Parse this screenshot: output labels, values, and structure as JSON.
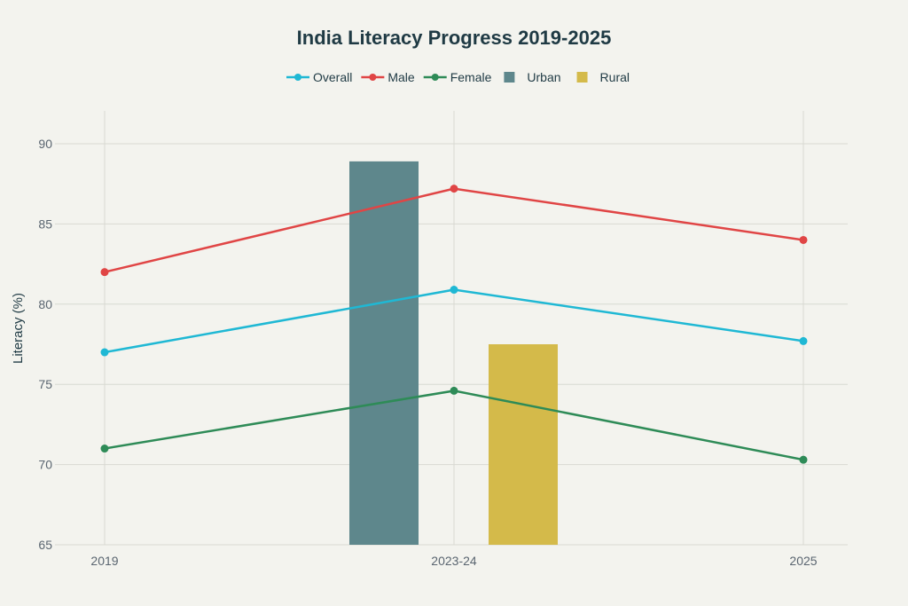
{
  "chart_data": {
    "type": "line",
    "title": "India Literacy Progress 2019-2025",
    "xlabel": "",
    "ylabel": "Literacy (%)",
    "ylim": [
      65,
      92
    ],
    "yticks": [
      65,
      70,
      75,
      80,
      85,
      90
    ],
    "categories": [
      "2019",
      "2023-24",
      "2025"
    ],
    "grid": true,
    "legend_position": "top-center",
    "series": [
      {
        "name": "Overall",
        "kind": "line",
        "color": "#1fb8d4",
        "values": [
          77.0,
          80.9,
          77.7
        ]
      },
      {
        "name": "Male",
        "kind": "line",
        "color": "#e04545",
        "values": [
          82.0,
          87.2,
          84.0
        ]
      },
      {
        "name": "Female",
        "kind": "line",
        "color": "#2e8b57",
        "values": [
          71.0,
          74.6,
          70.3
        ]
      },
      {
        "name": "Urban",
        "kind": "bar",
        "color": "#5e878c",
        "category": "2023-24",
        "value": 88.9
      },
      {
        "name": "Rural",
        "kind": "bar",
        "color": "#d4ba4a",
        "category": "2023-24",
        "value": 77.5
      }
    ]
  }
}
